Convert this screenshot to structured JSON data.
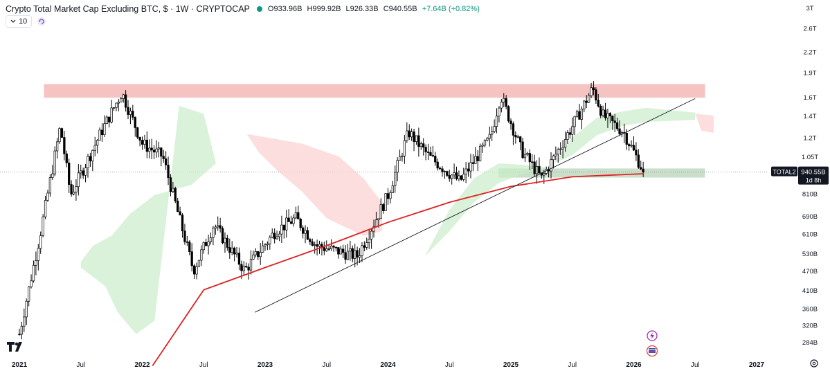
{
  "header": {
    "title": "Crypto Total Market Cap Excluding BTC, $ · 1W · CRYPTOCAP",
    "ohlc": [
      {
        "k": "O",
        "v": "933.96B"
      },
      {
        "k": "H",
        "v": "999.92B"
      },
      {
        "k": "L",
        "v": "926.33B"
      },
      {
        "k": "C",
        "v": "940.55B"
      }
    ],
    "change": "+7.64B (+0.82%)",
    "up_color": "#089981"
  },
  "sub": {
    "value": "10"
  },
  "badge": {
    "symbol": "TOTAL2",
    "price": "940.55B",
    "countdown": "1d 8h"
  },
  "logo": "tradingview-logo-icon",
  "icons": [
    "chevron-down-icon",
    "refresh-icon",
    "lightning-icon",
    "flag-icon",
    "settings-gear-icon"
  ],
  "chart_data": {
    "type": "candlestick",
    "title": "Crypto Total Market Cap Excluding BTC, $ · 1W · CRYPTOCAP",
    "y_scale": "log",
    "y_ticks": [
      "3T",
      "2.6T",
      "2.2T",
      "1.9T",
      "1.6T",
      "1.4T",
      "1.2T",
      "1.05T",
      "940.55B",
      "810B",
      "690B",
      "610B",
      "530B",
      "470B",
      "410B",
      "360B",
      "320B",
      "284B"
    ],
    "x_ticks": [
      "2021",
      "Jul",
      "2022",
      "Jul",
      "2023",
      "Jul",
      "2024",
      "Jul",
      "2025",
      "Jul",
      "2026",
      "Jul",
      "2027"
    ],
    "last_price": "940.55B",
    "approx_close_path_B": [
      [
        "2021-01",
        300
      ],
      [
        "2021-03",
        600
      ],
      [
        "2021-05",
        1300
      ],
      [
        "2021-06",
        800
      ],
      [
        "2021-09",
        1250
      ],
      [
        "2021-11",
        1650
      ],
      [
        "2022-01",
        1150
      ],
      [
        "2022-03",
        1050
      ],
      [
        "2022-06",
        470
      ],
      [
        "2022-08",
        650
      ],
      [
        "2022-11",
        470
      ],
      [
        "2023-02",
        620
      ],
      [
        "2023-04",
        680
      ],
      [
        "2023-06",
        560
      ],
      [
        "2023-10",
        520
      ],
      [
        "2024-01",
        800
      ],
      [
        "2024-03",
        1250
      ],
      [
        "2024-05",
        1050
      ],
      [
        "2024-08",
        880
      ],
      [
        "2024-11",
        1200
      ],
      [
        "2024-12",
        1620
      ],
      [
        "2025-02",
        1100
      ],
      [
        "2025-04",
        900
      ],
      [
        "2025-07",
        1300
      ],
      [
        "2025-09",
        1700
      ],
      [
        "2025-10",
        1400
      ],
      [
        "2025-12",
        1250
      ],
      [
        "2026-02",
        940.55
      ]
    ],
    "ma_line_B": [
      [
        "2022-02",
        240
      ],
      [
        "2022-07",
        410
      ],
      [
        "2023-01",
        480
      ],
      [
        "2023-07",
        560
      ],
      [
        "2024-01",
        660
      ],
      [
        "2024-07",
        760
      ],
      [
        "2025-01",
        850
      ],
      [
        "2025-07",
        910
      ],
      [
        "2026-02",
        930
      ]
    ],
    "resistance_zone_B": [
      1590,
      1750
    ],
    "support_zone_B": [
      905,
      965
    ],
    "trendline_B": [
      [
        "2022-12",
        350
      ],
      [
        "2026-07",
        1580
      ]
    ],
    "colors": {
      "up": "#ffffff",
      "down": "#000000",
      "ma": "#e02020",
      "resistance": "#f5b8b8",
      "support": "#a7c9a7",
      "cloud_green": "#c9ecc9",
      "cloud_red": "#fbd0d0"
    }
  }
}
